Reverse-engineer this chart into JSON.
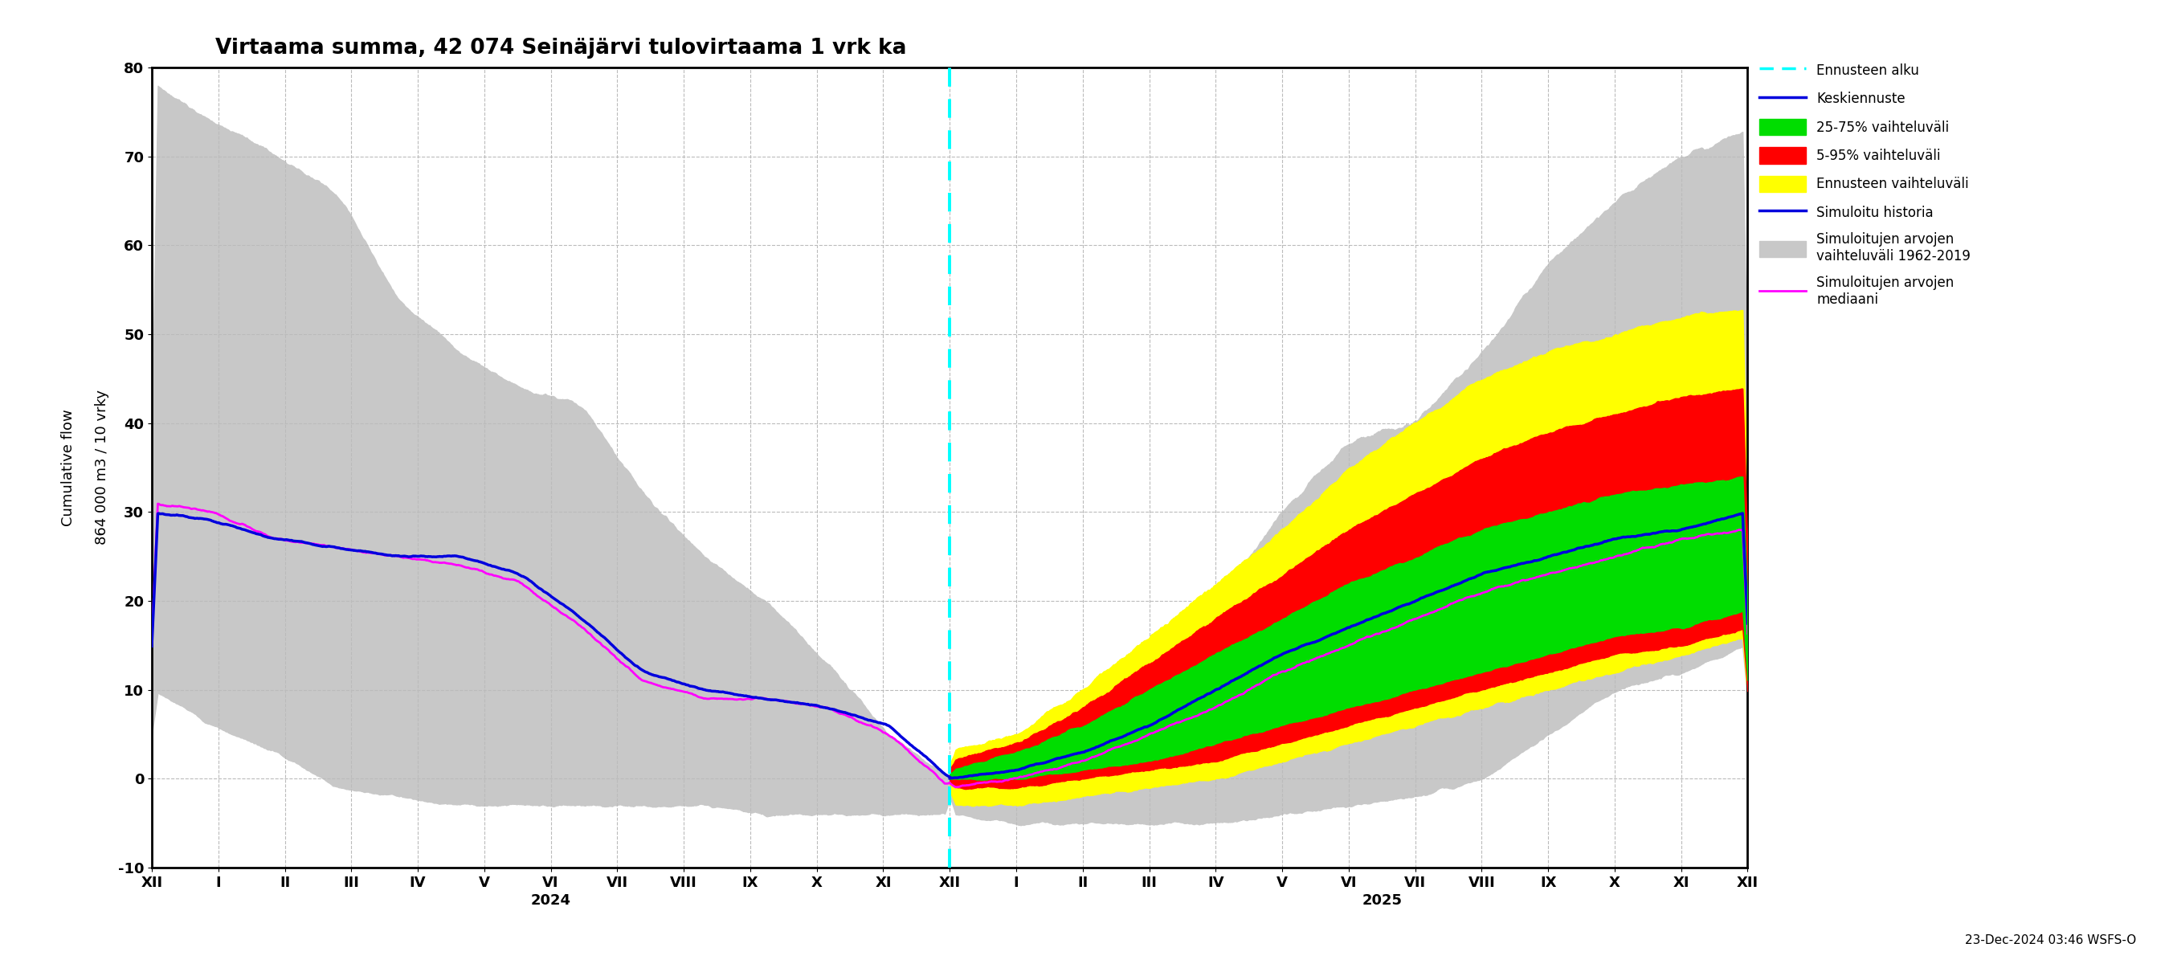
{
  "title": "Virtaama summa, 42 074 Seinäjärvi tulovirtaama 1 vrk ka",
  "ylabel_line1": "864 000 m3 / 10 vrky",
  "ylabel_line2": "Cumulative flow",
  "ylim": [
    -10,
    80
  ],
  "yticks": [
    -10,
    0,
    10,
    20,
    30,
    40,
    50,
    60,
    70,
    80
  ],
  "date_label": "23-Dec-2024 03:46 WSFS-O",
  "background_color": "#ffffff",
  "month_labels": [
    "XII",
    "I",
    "II",
    "III",
    "IV",
    "V",
    "VI",
    "VII",
    "VIII",
    "IX",
    "X",
    "XI",
    "XII",
    "I",
    "II",
    "III",
    "IV",
    "V",
    "VI",
    "VII",
    "VIII",
    "IX",
    "X",
    "XI",
    "XII"
  ],
  "gray_band_color": "#c8c8c8",
  "yellow_band_color": "#ffff00",
  "red_band_color": "#ff0000",
  "green_band_color": "#00dd00",
  "blue_line_color": "#0000dd",
  "magenta_line_color": "#ff00ff",
  "cyan_line_color": "#00ffff",
  "legend_gray_color": "#aaaaaa",
  "forecast_month_idx": 12,
  "n_months_total": 25,
  "hist_gray_upper": [
    78,
    74,
    70,
    66,
    54,
    48,
    44,
    42,
    32,
    25,
    20,
    13,
    5,
    0
  ],
  "hist_gray_lower": [
    10,
    6,
    3,
    -1,
    -2,
    -3,
    -3,
    -3,
    -3,
    -3,
    -4,
    -4,
    -4,
    -4
  ],
  "fore_gray_upper": [
    0,
    3,
    8,
    12,
    20,
    30,
    38,
    40,
    48,
    58,
    65,
    70,
    73
  ],
  "fore_gray_lower": [
    -4,
    -5,
    -5,
    -5,
    -5,
    -4,
    -3,
    -2,
    0,
    5,
    10,
    12,
    15
  ],
  "hist_blue": [
    30,
    29,
    27,
    26,
    25,
    25,
    23,
    18,
    12,
    10,
    9,
    8,
    6,
    0
  ],
  "hist_magenta": [
    31,
    30,
    27,
    26,
    25,
    24,
    22,
    17,
    11,
    9,
    9,
    8,
    5,
    -1
  ],
  "fore_yellow_upper": [
    3,
    5,
    10,
    16,
    22,
    28,
    35,
    40,
    45,
    48,
    50,
    52,
    53
  ],
  "fore_yellow_lower": [
    -3,
    -3,
    -2,
    -1,
    0,
    2,
    4,
    6,
    8,
    10,
    12,
    14,
    16
  ],
  "fore_red_upper": [
    2,
    4,
    8,
    13,
    18,
    23,
    28,
    32,
    36,
    39,
    41,
    43,
    44
  ],
  "fore_red_lower": [
    -1,
    -1,
    0,
    1,
    2,
    4,
    6,
    8,
    10,
    12,
    14,
    15,
    17
  ],
  "fore_green_upper": [
    1,
    3,
    6,
    10,
    14,
    18,
    22,
    25,
    28,
    30,
    32,
    33,
    34
  ],
  "fore_green_lower": [
    0,
    0,
    1,
    2,
    4,
    6,
    8,
    10,
    12,
    14,
    16,
    17,
    19
  ],
  "fore_blue": [
    0,
    1,
    3,
    6,
    10,
    14,
    17,
    20,
    23,
    25,
    27,
    28,
    30
  ],
  "fore_magenta": [
    -1,
    0,
    2,
    5,
    8,
    12,
    15,
    18,
    21,
    23,
    25,
    27,
    28
  ]
}
